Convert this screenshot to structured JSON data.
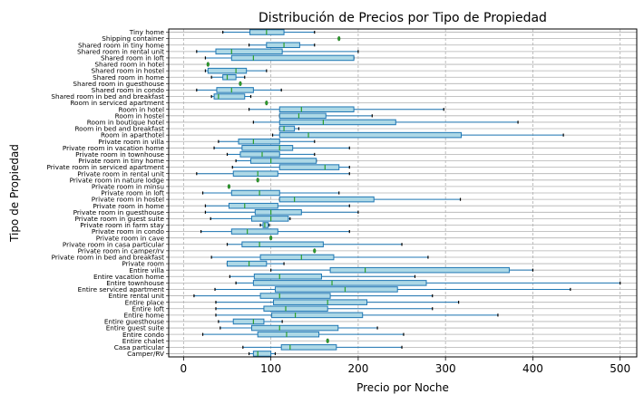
{
  "chart_data": {
    "type": "boxplot-horizontal",
    "title": "Distribución de Precios por Tipo de Propiedad",
    "xlabel": "Precio por Noche",
    "ylabel": "Tipo de Propiedad",
    "xlim": [
      -17,
      519
    ],
    "xticks": [
      0,
      100,
      200,
      300,
      400,
      500
    ],
    "grid": "x-dashed",
    "box_color": "#add8e6",
    "whisker_color": "#1f77b4",
    "median_color": "#2ca02c",
    "categories": [
      "Camper/RV",
      "Casa particular",
      "Entire chalet",
      "Entire condo",
      "Entire guest suite",
      "Entire guesthouse",
      "Entire home",
      "Entire loft",
      "Entire place",
      "Entire rental unit",
      "Entire serviced apartment",
      "Entire townhouse",
      "Entire vacation home",
      "Entire villa",
      "Private room",
      "Private room in bed and breakfast",
      "Private room in camper/rv",
      "Private room in casa particular",
      "Private room in cave",
      "Private room in condo",
      "Private room in farm stay",
      "Private room in guest suite",
      "Private room in guesthouse",
      "Private room in home",
      "Private room in hostel",
      "Private room in loft",
      "Private room in minsu",
      "Private room in nature lodge",
      "Private room in rental unit",
      "Private room in serviced apartment",
      "Private room in tiny home",
      "Private room in townhouse",
      "Private room in vacation home",
      "Private room in villa",
      "Room in aparthotel",
      "Room in bed and breakfast",
      "Room in boutique hotel",
      "Room in hostel",
      "Room in hotel",
      "Room in serviced apartment",
      "Shared room in bed and breakfast",
      "Shared room in condo",
      "Shared room in guesthouse",
      "Shared room in home",
      "Shared room in hostel",
      "Shared room in hotel",
      "Shared room in loft",
      "Shared room in rental unit",
      "Shared room in tiny home",
      "Shipping container",
      "Tiny home"
    ],
    "boxes": [
      {
        "min": 75,
        "q1": 80,
        "median": 85,
        "q3": 100,
        "max": 105
      },
      {
        "min": 68,
        "q1": 112,
        "median": 122,
        "q3": 175,
        "max": 250
      },
      {
        "single": 165
      },
      {
        "min": 22,
        "q1": 85,
        "median": 118,
        "q3": 155,
        "max": 252
      },
      {
        "min": 42,
        "q1": 78,
        "median": 110,
        "q3": 177,
        "max": 222
      },
      {
        "min": 40,
        "q1": 57,
        "median": 80,
        "q3": 92,
        "max": 113
      },
      {
        "min": 37,
        "q1": 101,
        "median": 128,
        "q3": 205,
        "max": 360
      },
      {
        "min": 37,
        "q1": 92,
        "median": 117,
        "q3": 165,
        "max": 285
      },
      {
        "min": 37,
        "q1": 103,
        "median": 165,
        "q3": 210,
        "max": 315
      },
      {
        "min": 12,
        "q1": 88,
        "median": 110,
        "q3": 168,
        "max": 285
      },
      {
        "min": 36,
        "q1": 105,
        "median": 185,
        "q3": 245,
        "max": 443
      },
      {
        "min": 60,
        "q1": 80,
        "median": 170,
        "q3": 278,
        "max": 500
      },
      {
        "min": 53,
        "q1": 81,
        "median": 110,
        "q3": 158,
        "max": 265
      },
      {
        "min": 100,
        "q1": 168,
        "median": 208,
        "q3": 373,
        "max": 400
      },
      {
        "min": 50,
        "q1": 50,
        "median": 75,
        "q3": 95,
        "max": 115
      },
      {
        "min": 32,
        "q1": 88,
        "median": 135,
        "q3": 172,
        "max": 280
      },
      {
        "single": 150
      },
      {
        "min": 50,
        "q1": 67,
        "median": 87,
        "q3": 160,
        "max": 250
      },
      {
        "single": 100
      },
      {
        "min": 20,
        "q1": 55,
        "median": 73,
        "q3": 108,
        "max": 190
      },
      {
        "min": 88,
        "q1": 91,
        "median": 93,
        "q3": 97,
        "max": 98
      },
      {
        "min": 31,
        "q1": 78,
        "median": 100,
        "q3": 120,
        "max": 122
      },
      {
        "min": 25,
        "q1": 82,
        "median": 100,
        "q3": 135,
        "max": 200
      },
      {
        "min": 25,
        "q1": 52,
        "median": 70,
        "q3": 108,
        "max": 190
      },
      {
        "min": 110,
        "q1": 110,
        "median": 127,
        "q3": 218,
        "max": 317
      },
      {
        "min": 22,
        "q1": 55,
        "median": 87,
        "q3": 110,
        "max": 178
      },
      {
        "single": 52
      },
      {
        "single": 85
      },
      {
        "min": 15,
        "q1": 57,
        "median": 85,
        "q3": 108,
        "max": 190
      },
      {
        "min": 56,
        "q1": 110,
        "median": 162,
        "q3": 178,
        "max": 190
      },
      {
        "min": 60,
        "q1": 77,
        "median": 100,
        "q3": 152,
        "max": 152
      },
      {
        "min": 50,
        "q1": 65,
        "median": 90,
        "q3": 110,
        "max": 150
      },
      {
        "min": 35,
        "q1": 67,
        "median": 110,
        "q3": 125,
        "max": 190
      },
      {
        "min": 40,
        "q1": 63,
        "median": 80,
        "q3": 110,
        "max": 150
      },
      {
        "min": 102,
        "q1": 110,
        "median": 143,
        "q3": 318,
        "max": 435
      },
      {
        "min": 110,
        "q1": 110,
        "median": 115,
        "q3": 127,
        "max": 132
      },
      {
        "min": 80,
        "q1": 110,
        "median": 160,
        "q3": 243,
        "max": 383
      },
      {
        "min": 110,
        "q1": 110,
        "median": 132,
        "q3": 163,
        "max": 216
      },
      {
        "min": 75,
        "q1": 110,
        "median": 135,
        "q3": 195,
        "max": 298
      },
      {
        "single": 95
      },
      {
        "min": 32,
        "q1": 35,
        "median": 40,
        "q3": 70,
        "max": 77
      },
      {
        "min": 15,
        "q1": 38,
        "median": 55,
        "q3": 80,
        "max": 112
      },
      {
        "single": 65
      },
      {
        "min": 32,
        "q1": 45,
        "median": 50,
        "q3": 60,
        "max": 70
      },
      {
        "min": 25,
        "q1": 28,
        "median": 60,
        "q3": 72,
        "max": 95
      },
      {
        "single": 28
      },
      {
        "min": 25,
        "q1": 55,
        "median": 80,
        "q3": 195,
        "max": 195
      },
      {
        "min": 15,
        "q1": 37,
        "median": 55,
        "q3": 113,
        "max": 200
      },
      {
        "min": 75,
        "q1": 95,
        "median": 115,
        "q3": 133,
        "max": 150
      },
      {
        "single": 178
      },
      {
        "min": 45,
        "q1": 76,
        "median": 95,
        "q3": 115,
        "max": 150
      }
    ]
  }
}
